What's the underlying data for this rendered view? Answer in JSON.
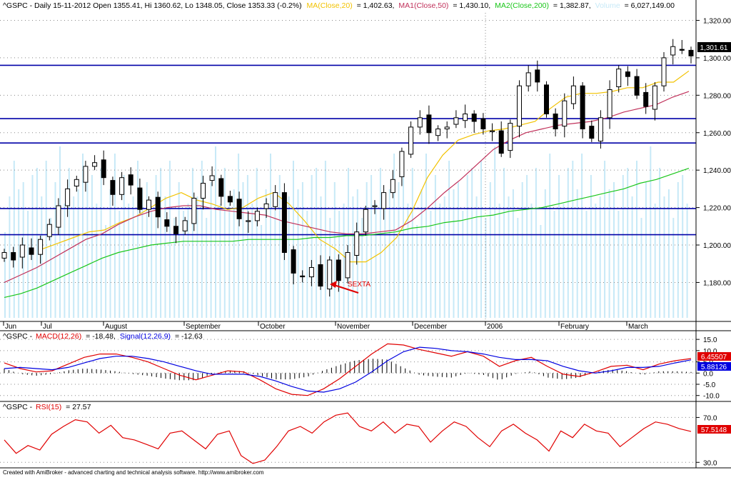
{
  "header": {
    "symbol": "^GSPC",
    "main_info": "^GSPC - Daily 15-11-2012 Open 1355.41, Hi 1360.62, Lo 1348.05, Close 1353.33 (-0.2%)",
    "ma20_label": "MA(Close,20)",
    "ma20_value": "= 1,402.63,",
    "ma50_label": "MA1(Close,50)",
    "ma50_value": "= 1,430.10,",
    "ma200_label": "MA2(Close,200)",
    "ma200_value": "= 1,382.87,",
    "volume_label": "Volume",
    "volume_value": "= 6,027,149.00"
  },
  "macd_header": {
    "prefix": "^GSPC -",
    "macd_label": "MACD(12,26)",
    "macd_value": "= -18.48,",
    "signal_label": "Signal(12,26,9)",
    "signal_value": "= -12.63"
  },
  "rsi_header": {
    "prefix": "^GSPC -",
    "rsi_label": "RSI(15)",
    "rsi_value": "= 27.57"
  },
  "footer": "Created with AmiBroker - advanced charting and technical analysis software. http://www.amibroker.com",
  "annotation": "SEXTA",
  "colors": {
    "ma20": "#f2c200",
    "ma50": "#c0305a",
    "ma200": "#19c619",
    "volume": "#c7e9f7",
    "support": "#0000a8",
    "macd": "#e00000",
    "signal": "#0000e0",
    "rsi": "#e00000",
    "annotation": "#e00000"
  },
  "chart_data": [
    {
      "type": "candlestick",
      "title": "^GSPC - Daily",
      "x_labels": [
        "Jun",
        "Jul",
        "August",
        "September",
        "October",
        "November",
        "December",
        "2006",
        "February",
        "March"
      ],
      "y_ticks": [
        "1,320.00",
        "1,300.00",
        "1,280.00",
        "1,260.00",
        "1,240.00",
        "1,220.00",
        "1,200.00",
        "1,180.00"
      ],
      "ylim": [
        1163,
        1324
      ],
      "last_price": "1,301.61",
      "horizontal_lines": [
        1296,
        1267.5,
        1254.5,
        1219.5,
        1205.5
      ],
      "series": [
        {
          "name": "MA(Close,20)",
          "values": [
            1198,
            1201,
            1204,
            1207,
            1208,
            1212,
            1215,
            1220,
            1225,
            1228,
            1224,
            1222,
            1219,
            1220,
            1225,
            1228,
            1222,
            1213,
            1203,
            1198,
            1191,
            1191,
            1196,
            1204,
            1218,
            1236,
            1248,
            1256,
            1259,
            1261,
            1262,
            1264,
            1266,
            1273,
            1279,
            1281,
            1281,
            1282,
            1284,
            1284,
            1287,
            1287,
            1293
          ]
        },
        {
          "name": "MA1(Close,50)",
          "values": [
            1180,
            1184,
            1188,
            1193,
            1198,
            1203,
            1206,
            1211,
            1215,
            1218,
            1220,
            1221,
            1221,
            1219,
            1218,
            1217,
            1216,
            1213,
            1211,
            1209,
            1207,
            1206,
            1206,
            1207,
            1208,
            1213,
            1220,
            1228,
            1235,
            1243,
            1251,
            1256,
            1260,
            1262,
            1264,
            1265,
            1266,
            1268,
            1271,
            1273,
            1275,
            1279,
            1282
          ]
        },
        {
          "name": "MA2(Close,200)",
          "values": [
            1172,
            1174,
            1177,
            1181,
            1185,
            1189,
            1193,
            1196,
            1198,
            1200,
            1201,
            1202,
            1202,
            1202,
            1202,
            1203,
            1203,
            1203,
            1203,
            1204,
            1204,
            1205,
            1205,
            1206,
            1207,
            1209,
            1210,
            1212,
            1213,
            1215,
            1216,
            1218,
            1219,
            1220,
            1222,
            1224,
            1226,
            1228,
            1230,
            1233,
            1235,
            1238,
            1241
          ]
        }
      ],
      "closes": [
        1196,
        1192,
        1200,
        1195,
        1203,
        1211,
        1221,
        1230,
        1235,
        1242,
        1244,
        1236,
        1227,
        1236,
        1232,
        1219,
        1224,
        1215,
        1210,
        1206,
        1213,
        1225,
        1233,
        1237,
        1226,
        1223,
        1214,
        1213,
        1218,
        1222,
        1228,
        1196,
        1185,
        1183,
        1188,
        1178,
        1192,
        1181,
        1196,
        1207,
        1219,
        1221,
        1228,
        1235,
        1250,
        1263,
        1268,
        1260,
        1262,
        1263,
        1268,
        1270,
        1266,
        1262,
        1261,
        1249,
        1265,
        1285,
        1292,
        1287,
        1270,
        1262,
        1277,
        1285,
        1262,
        1257,
        1268,
        1283,
        1294,
        1290,
        1280,
        1274,
        1285,
        1300,
        1306,
        1304,
        1301
      ]
    },
    {
      "type": "line",
      "title": "MACD(12,26)",
      "y_ticks": [
        "15.0",
        "10.0",
        "5.0",
        "0.0",
        "-5.0",
        "-10.0"
      ],
      "ylim": [
        -12,
        16
      ],
      "series": [
        {
          "name": "MACD(12,26)",
          "values": [
            4.5,
            2.0,
            0.5,
            1.0,
            4.0,
            7.0,
            8.5,
            8.5,
            7.0,
            5.0,
            2.0,
            -1.0,
            -3.0,
            -1.0,
            1.0,
            0.5,
            -3.0,
            -7.0,
            -9.5,
            -10.0,
            -7.0,
            -2.5,
            3.0,
            8.5,
            13.0,
            12.5,
            10.5,
            9.0,
            7.5,
            9.5,
            7.5,
            3.0,
            5.5,
            7.0,
            3.0,
            -0.5,
            -1.5,
            0.5,
            3.0,
            3.5,
            1.5,
            4.0,
            5.5,
            6.46
          ]
        },
        {
          "name": "Signal(12,26,9)",
          "values": [
            2.0,
            2.5,
            2.0,
            1.5,
            2.5,
            4.5,
            6.5,
            7.5,
            7.5,
            6.5,
            5.0,
            3.0,
            1.0,
            -0.5,
            -0.5,
            -0.5,
            -1.5,
            -3.5,
            -6.0,
            -8.0,
            -8.5,
            -7.0,
            -4.0,
            0.5,
            5.5,
            9.5,
            11.5,
            11.0,
            10.0,
            9.5,
            8.5,
            7.0,
            6.0,
            6.0,
            5.5,
            3.0,
            1.0,
            0.0,
            1.0,
            2.5,
            2.5,
            3.0,
            4.5,
            5.88
          ]
        }
      ],
      "last_values": [
        "6.45507",
        "5.88126"
      ]
    },
    {
      "type": "line",
      "title": "RSI(15)",
      "y_ticks": [
        "70.0",
        "30.0"
      ],
      "ylim": [
        27,
        76
      ],
      "series": [
        {
          "name": "RSI(15)",
          "values": [
            50,
            38,
            45,
            41,
            55,
            62,
            68,
            66,
            56,
            63,
            52,
            50,
            46,
            42,
            56,
            58,
            50,
            42,
            55,
            58,
            36,
            29,
            32,
            44,
            58,
            62,
            56,
            66,
            72,
            74,
            62,
            58,
            66,
            56,
            64,
            62,
            48,
            58,
            66,
            62,
            52,
            44,
            58,
            64,
            56,
            50,
            40,
            58,
            52,
            64,
            58,
            56,
            44,
            52,
            60,
            66,
            64,
            60,
            57.51
          ]
        }
      ],
      "last_value": "57.5148"
    }
  ]
}
